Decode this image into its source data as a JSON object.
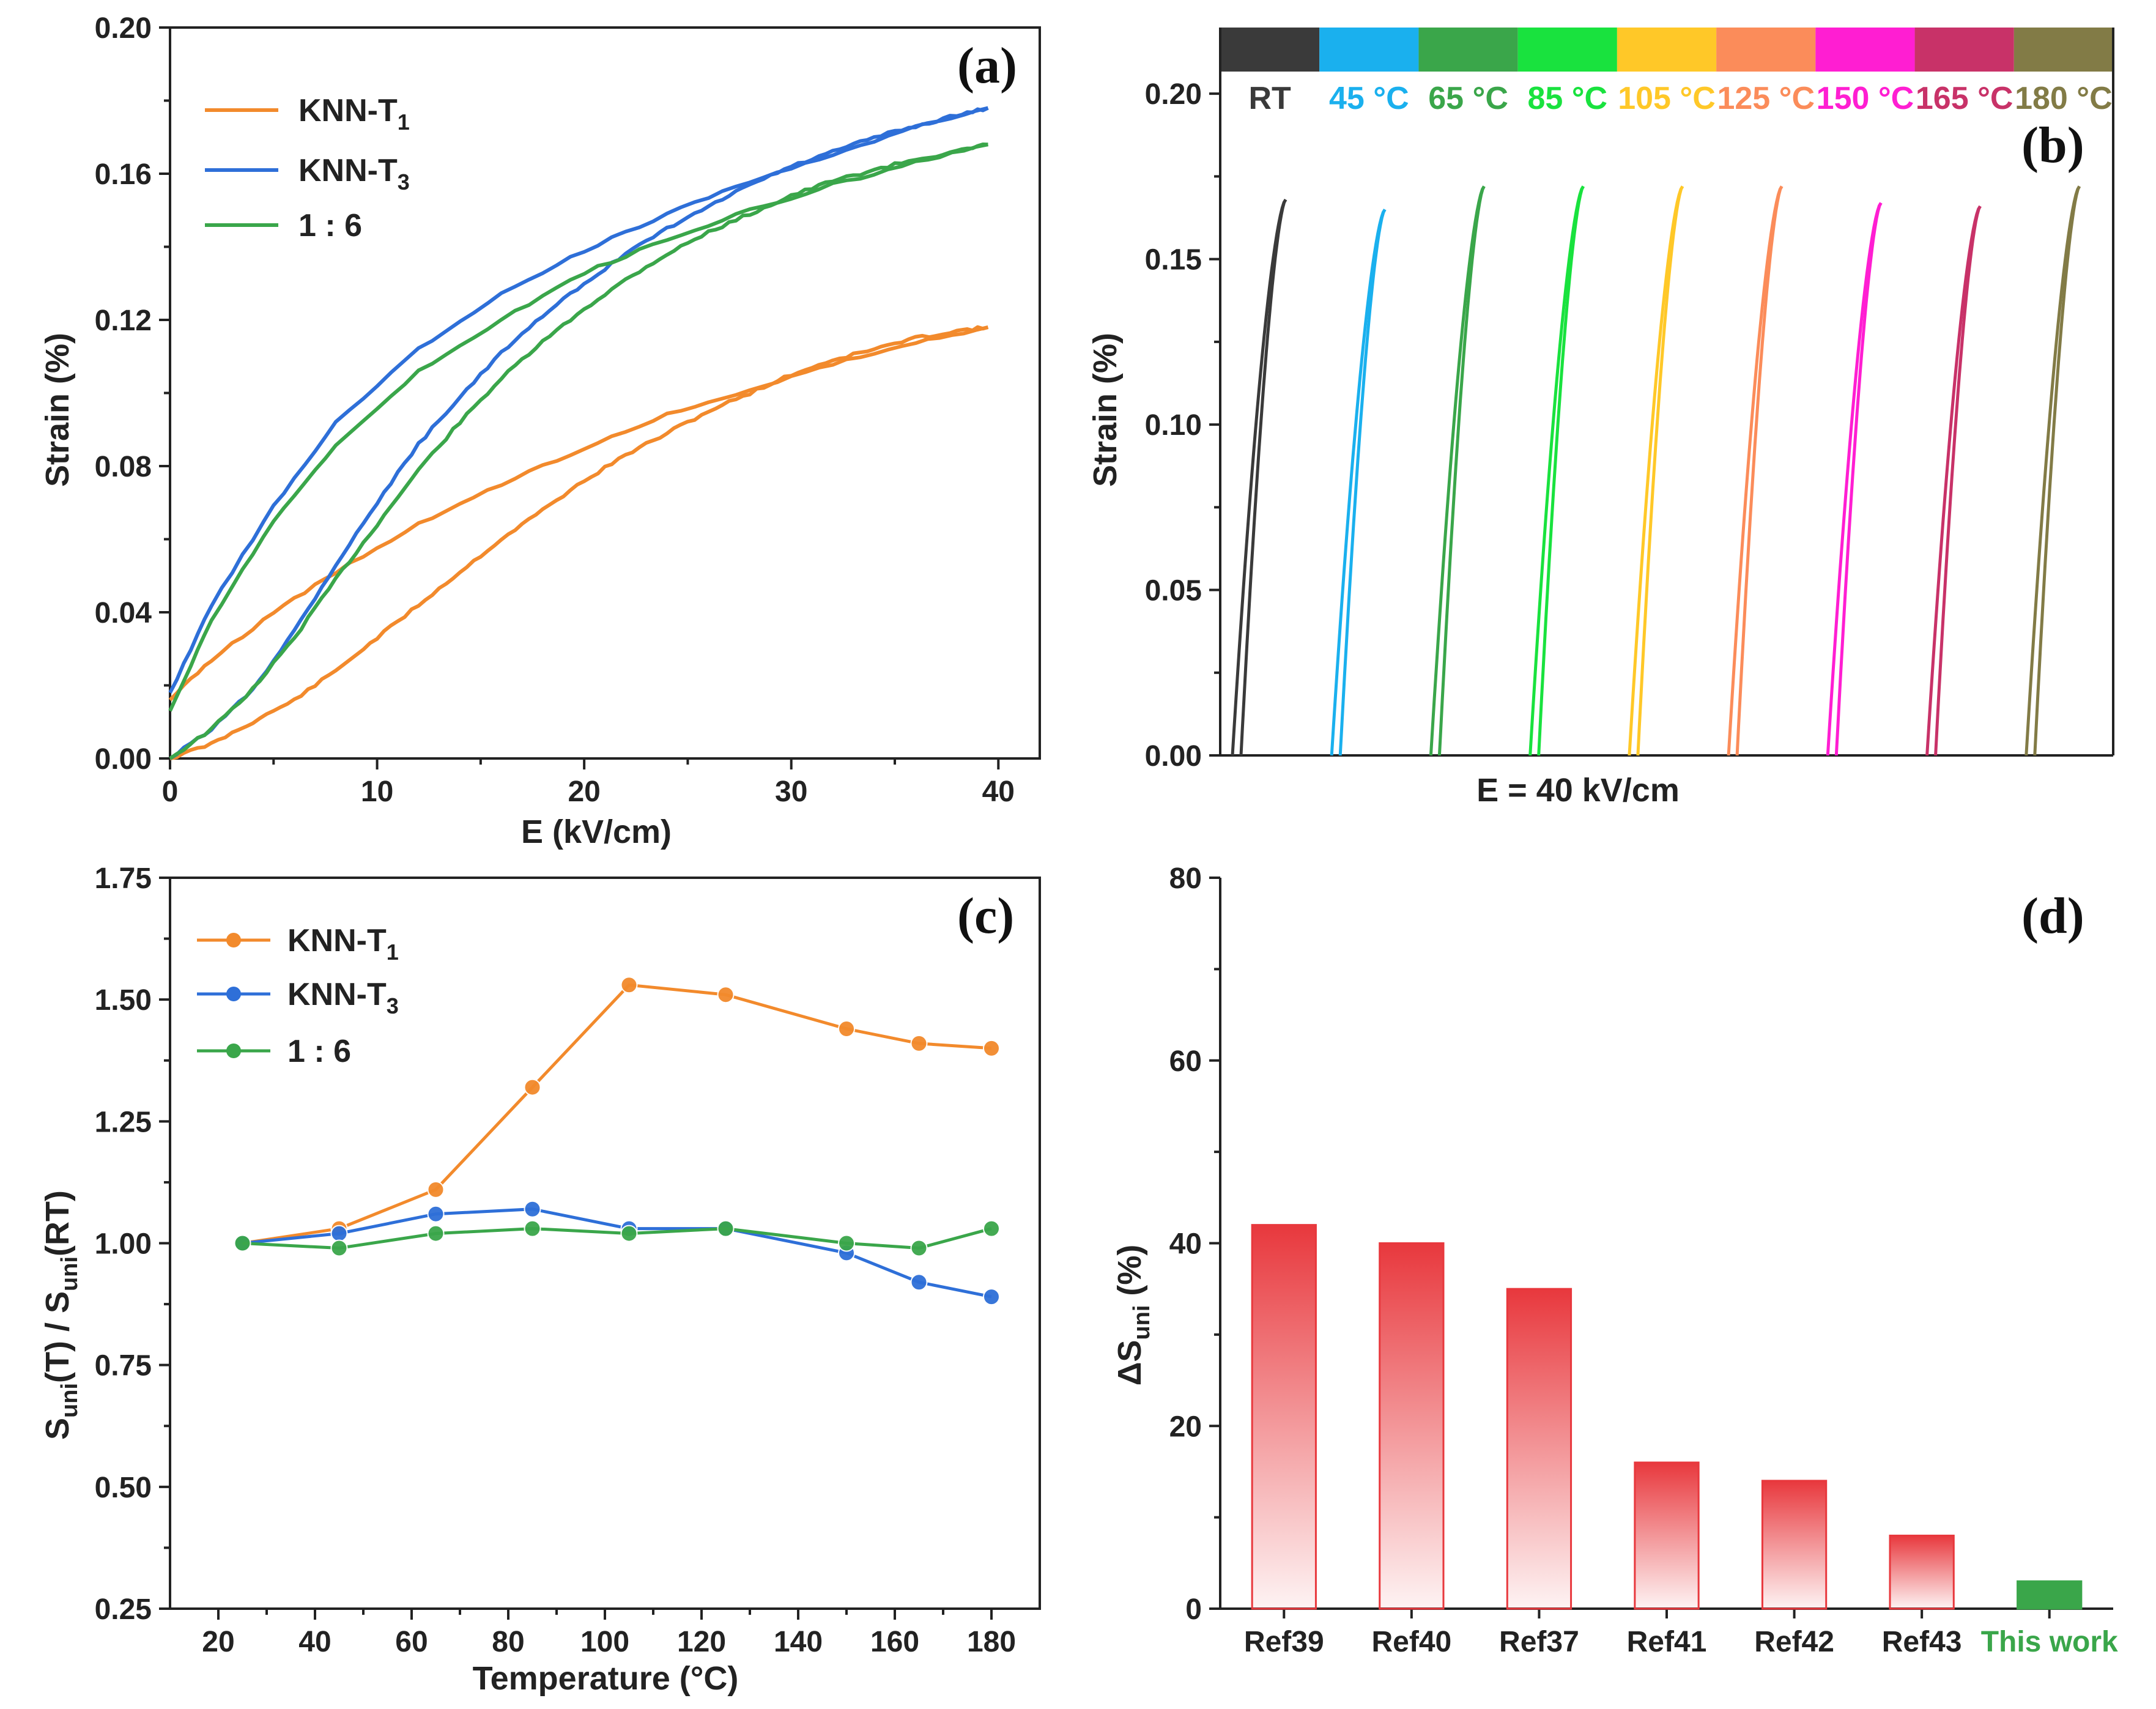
{
  "chart_data": [
    {
      "panel": "(a)",
      "type": "line",
      "title": "",
      "xlabel": "E (kV/cm)",
      "ylabel": "Strain (%)",
      "xlim": [
        0,
        42
      ],
      "ylim": [
        0,
        0.2
      ],
      "xticks": [
        "0",
        "10",
        "20",
        "30",
        "40"
      ],
      "yticks": [
        "0.00",
        "0.04",
        "0.08",
        "0.12",
        "0.16",
        "0.20"
      ],
      "legend_position": "top-left",
      "series": [
        {
          "name": "KNN-T",
          "sub": "1",
          "color": "#f28a2c",
          "rise": [
            [
              0,
              0
            ],
            [
              2,
              0.004
            ],
            [
              4,
              0.01
            ],
            [
              6,
              0.016
            ],
            [
              8,
              0.024
            ],
            [
              10,
              0.033
            ],
            [
              12,
              0.042
            ],
            [
              14,
              0.051
            ],
            [
              16,
              0.06
            ],
            [
              18,
              0.068
            ],
            [
              20,
              0.076
            ],
            [
              22,
              0.083
            ],
            [
              24,
              0.089
            ],
            [
              26,
              0.095
            ],
            [
              28,
              0.1
            ],
            [
              30,
              0.105
            ],
            [
              32,
              0.109
            ],
            [
              34,
              0.112
            ],
            [
              36,
              0.115
            ],
            [
              38,
              0.117
            ],
            [
              39.5,
              0.118
            ]
          ],
          "fall": [
            [
              39.5,
              0.118
            ],
            [
              36,
              0.114
            ],
            [
              32,
              0.108
            ],
            [
              28,
              0.101
            ],
            [
              24,
              0.094
            ],
            [
              20,
              0.085
            ],
            [
              16,
              0.075
            ],
            [
              12,
              0.064
            ],
            [
              8,
              0.051
            ],
            [
              5,
              0.04
            ],
            [
              2,
              0.027
            ],
            [
              0,
              0.016
            ]
          ]
        },
        {
          "name": "KNN-T",
          "sub": "3",
          "color": "#2e6fd8",
          "rise": [
            [
              0,
              0
            ],
            [
              2,
              0.008
            ],
            [
              4,
              0.019
            ],
            [
              6,
              0.035
            ],
            [
              8,
              0.053
            ],
            [
              10,
              0.07
            ],
            [
              12,
              0.086
            ],
            [
              14,
              0.099
            ],
            [
              16,
              0.111
            ],
            [
              18,
              0.121
            ],
            [
              20,
              0.13
            ],
            [
              22,
              0.138
            ],
            [
              24,
              0.145
            ],
            [
              26,
              0.151
            ],
            [
              28,
              0.157
            ],
            [
              30,
              0.162
            ],
            [
              32,
              0.166
            ],
            [
              34,
              0.17
            ],
            [
              36,
              0.173
            ],
            [
              38,
              0.176
            ],
            [
              39.5,
              0.178
            ]
          ],
          "fall": [
            [
              39.5,
              0.178
            ],
            [
              36,
              0.173
            ],
            [
              32,
              0.165
            ],
            [
              28,
              0.158
            ],
            [
              24,
              0.149
            ],
            [
              20,
              0.139
            ],
            [
              16,
              0.127
            ],
            [
              12,
              0.112
            ],
            [
              8,
              0.092
            ],
            [
              5,
              0.069
            ],
            [
              2,
              0.042
            ],
            [
              0,
              0.018
            ]
          ]
        },
        {
          "name": "1 : 6",
          "sub": "",
          "color": "#3aa64a",
          "rise": [
            [
              0,
              0
            ],
            [
              2,
              0.008
            ],
            [
              4,
              0.019
            ],
            [
              6,
              0.033
            ],
            [
              8,
              0.049
            ],
            [
              10,
              0.064
            ],
            [
              12,
              0.079
            ],
            [
              14,
              0.092
            ],
            [
              16,
              0.104
            ],
            [
              18,
              0.114
            ],
            [
              20,
              0.123
            ],
            [
              22,
              0.131
            ],
            [
              24,
              0.138
            ],
            [
              26,
              0.144
            ],
            [
              28,
              0.149
            ],
            [
              30,
              0.154
            ],
            [
              32,
              0.158
            ],
            [
              34,
              0.161
            ],
            [
              36,
              0.164
            ],
            [
              38,
              0.166
            ],
            [
              39.5,
              0.168
            ]
          ],
          "fall": [
            [
              39.5,
              0.168
            ],
            [
              36,
              0.163
            ],
            [
              32,
              0.157
            ],
            [
              28,
              0.15
            ],
            [
              24,
              0.142
            ],
            [
              20,
              0.133
            ],
            [
              16,
              0.12
            ],
            [
              12,
              0.106
            ],
            [
              8,
              0.086
            ],
            [
              5,
              0.065
            ],
            [
              2,
              0.038
            ],
            [
              0,
              0.013
            ]
          ]
        }
      ]
    },
    {
      "panel": "(b)",
      "type": "line",
      "title": "",
      "xlabel": "E = 40 kV/cm",
      "ylabel": "Strain (%)",
      "ylim": [
        0,
        0.22
      ],
      "yticks": [
        "0.00",
        "0.05",
        "0.10",
        "0.15",
        "0.20"
      ],
      "segments": [
        {
          "label": "RT",
          "color": "#3a3a3a",
          "peak": 0.168
        },
        {
          "label": "45 °C",
          "color": "#1ab0ee",
          "peak": 0.165
        },
        {
          "label": "65 °C",
          "color": "#3aa64a",
          "peak": 0.172
        },
        {
          "label": "85 °C",
          "color": "#19e23e",
          "peak": 0.172
        },
        {
          "label": "105 °C",
          "color": "#ffc828",
          "peak": 0.172
        },
        {
          "label": "125 °C",
          "color": "#fb8c5a",
          "peak": 0.172
        },
        {
          "label": "150 °C",
          "color": "#ff1ed2",
          "peak": 0.167
        },
        {
          "label": "165 °C",
          "color": "#c83268",
          "peak": 0.166
        },
        {
          "label": "180 °C",
          "color": "#827b46",
          "peak": 0.172
        }
      ]
    },
    {
      "panel": "(c)",
      "type": "line",
      "title": "",
      "xlabel": "Temperature (°C)",
      "ylabel": "S",
      "ylabel_sub1": "uni",
      "ylabel_mid": "(T) / S",
      "ylabel_sub2": "uni",
      "ylabel_end": "(RT)",
      "xlim": [
        10,
        190
      ],
      "ylim": [
        0.25,
        1.75
      ],
      "xticks": [
        "20",
        "40",
        "60",
        "80",
        "100",
        "120",
        "140",
        "160",
        "180"
      ],
      "yticks": [
        "0.25",
        "0.50",
        "0.75",
        "1.00",
        "1.25",
        "1.50",
        "1.75"
      ],
      "x": [
        25,
        45,
        65,
        85,
        105,
        125,
        150,
        165,
        180
      ],
      "legend_position": "top-left",
      "series": [
        {
          "name": "KNN-T",
          "sub": "1",
          "color": "#f28a2c",
          "values": [
            1.0,
            1.03,
            1.11,
            1.32,
            1.53,
            1.51,
            1.44,
            1.41,
            1.4
          ]
        },
        {
          "name": "KNN-T",
          "sub": "3",
          "color": "#2e6fd8",
          "values": [
            1.0,
            1.02,
            1.06,
            1.07,
            1.03,
            1.03,
            0.98,
            0.92,
            0.89
          ]
        },
        {
          "name": "1 : 6",
          "sub": "",
          "color": "#3aa64a",
          "values": [
            1.0,
            0.99,
            1.02,
            1.03,
            1.02,
            1.03,
            1.0,
            0.99,
            1.03
          ]
        }
      ]
    },
    {
      "panel": "(d)",
      "type": "bar",
      "title": "",
      "xlabel": "",
      "ylabel": "ΔS",
      "ylabel_sub": "uni",
      "ylabel_end": " (%)",
      "ylim": [
        0,
        80
      ],
      "yticks": [
        "0",
        "20",
        "40",
        "60",
        "80"
      ],
      "categories": [
        "Ref39",
        "Ref40",
        "Ref37",
        "Ref41",
        "Ref42",
        "Ref43",
        "This work"
      ],
      "values": [
        42,
        40,
        35,
        16,
        14,
        8,
        3
      ],
      "bar_colors": [
        "#e8383d",
        "#e8383d",
        "#e8383d",
        "#e8383d",
        "#e8383d",
        "#e8383d",
        "#3aa64a"
      ]
    }
  ]
}
